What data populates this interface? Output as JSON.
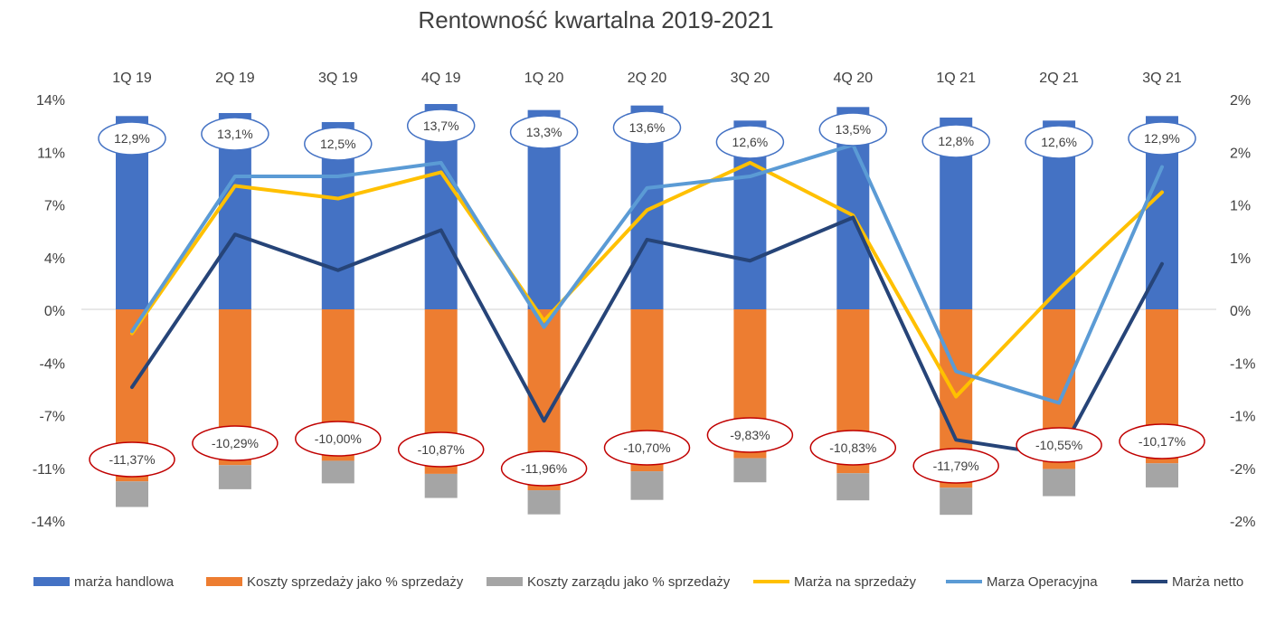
{
  "chart_data": {
    "type": "bar",
    "title": "Rentowność kwartalna 2019-2021",
    "categories": [
      "1Q 19",
      "2Q 19",
      "3Q 19",
      "4Q 19",
      "1Q 20",
      "2Q 20",
      "3Q 20",
      "4Q 20",
      "1Q 21",
      "2Q 21",
      "3Q 21"
    ],
    "ylim_left": [
      -14,
      14
    ],
    "yticks_left": [
      "14%",
      "11%",
      "7%",
      "4%",
      "0%",
      "-4%",
      "-7%",
      "-11%",
      "-14%"
    ],
    "ylim_right": [
      -2,
      2
    ],
    "yticks_right": [
      "2%",
      "2%",
      "1%",
      "1%",
      "0%",
      "-1%",
      "-1%",
      "-2%",
      "-2%"
    ],
    "grid": false,
    "legend_position": "bottom",
    "series": [
      {
        "name": "marża handlowa",
        "kind": "bar",
        "axis": "left",
        "color": "#4472C4",
        "values": [
          12.9,
          13.1,
          12.5,
          13.7,
          13.3,
          13.6,
          12.6,
          13.5,
          12.8,
          12.6,
          12.9
        ],
        "labels": [
          "12,9%",
          "13,1%",
          "12,5%",
          "13,7%",
          "13,3%",
          "13,6%",
          "12,6%",
          "13,5%",
          "12,8%",
          "12,6%",
          "12,9%"
        ]
      },
      {
        "name": "Koszty sprzedaży jako % sprzedaży",
        "kind": "bar",
        "axis": "left",
        "color": "#ED7D31",
        "values": [
          -11.37,
          -10.29,
          -10.0,
          -10.87,
          -11.96,
          -10.7,
          -9.83,
          -10.83,
          -11.79,
          -10.55,
          -10.17
        ],
        "labels": [
          "-11,37%",
          "-10,29%",
          "-10,00%",
          "-10,87%",
          "-11,96%",
          "-10,70%",
          "-9,83%",
          "-10,83%",
          "-11,79%",
          "-10,55%",
          "-10,17%"
        ]
      },
      {
        "name": "Koszty zarządu jako % sprzedaży",
        "kind": "bar",
        "axis": "left",
        "color": "#A5A5A5",
        "values": [
          -1.7,
          -1.6,
          -1.5,
          -1.6,
          -1.6,
          -1.9,
          -1.6,
          -1.8,
          -1.8,
          -1.8,
          -1.6
        ]
      },
      {
        "name": "Marża na sprzedaży",
        "kind": "line",
        "axis": "right",
        "color": "#FFC000",
        "values": [
          -0.22,
          1.18,
          1.06,
          1.31,
          -0.1,
          0.95,
          1.4,
          0.9,
          -0.82,
          0.2,
          1.12
        ]
      },
      {
        "name": "Marza Operacyjna",
        "kind": "line",
        "axis": "right",
        "color": "#5B9BD5",
        "values": [
          -0.2,
          1.27,
          1.27,
          1.4,
          -0.16,
          1.16,
          1.27,
          1.57,
          -0.58,
          -0.88,
          1.36
        ]
      },
      {
        "name": "Marża netto",
        "kind": "line",
        "axis": "right",
        "color": "#264478",
        "values": [
          -0.73,
          0.72,
          0.38,
          0.76,
          -1.05,
          0.67,
          0.47,
          0.88,
          -1.23,
          -1.38,
          0.44
        ]
      }
    ],
    "label_colors": {
      "positive_border": "#4472C4",
      "negative_border": "#C00000"
    }
  }
}
